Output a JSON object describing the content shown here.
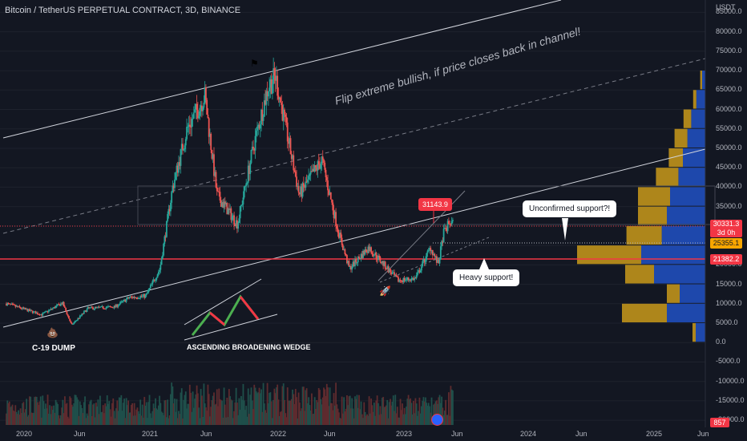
{
  "header": {
    "title": "Bitcoin / TetherUS PERPETUAL CONTRACT, 3D, BINANCE"
  },
  "price_axis": {
    "unit": "USDT",
    "ticks": [
      "85000.0",
      "80000.0",
      "75000.0",
      "70000.0",
      "65000.0",
      "60000.0",
      "55000.0",
      "50000.0",
      "45000.0",
      "40000.0",
      "35000.0",
      "20000.0",
      "15000.0",
      "10000.0",
      "5000.0",
      "0.0",
      "-5000.0",
      "-10000.0",
      "-15000.0",
      "-20000.0"
    ]
  },
  "time_axis": {
    "ticks": [
      "2020",
      "Jun",
      "2021",
      "Jun",
      "2022",
      "Jun",
      "2023",
      "Jun",
      "2024",
      "Jun",
      "2025",
      "Jun"
    ]
  },
  "price_tags": {
    "current": "30331.3",
    "countdown": "3d 0h",
    "level_orange": "25355.1",
    "level_red": "21382.2",
    "volume": "857"
  },
  "annotations": {
    "callout_high": "31143.9",
    "flip_text": "Flip extreme bullish, if price closes back in channel!",
    "unconfirmed": "Unconfirmed support?!",
    "heavy": "Heavy support!",
    "covid": "C-19 DUMP",
    "wedge": "ASCENDING BROADENING WEDGE"
  },
  "colors": {
    "bg": "#131722",
    "up": "#26a69a",
    "down": "#ef5350",
    "red_line": "#f23645",
    "orange": "#f7a600",
    "vp_up": "#2151c4",
    "vp_down": "#d6a21a"
  },
  "chart_data": {
    "type": "candlestick",
    "symbol": "BTCUSDT.P",
    "interval": "3D",
    "exchange": "BINANCE",
    "x_range": [
      "2019-09",
      "2025-06"
    ],
    "y_range": [
      -21000,
      89000
    ],
    "price_path": [
      [
        "2019-09-01",
        10000
      ],
      [
        "2019-12-15",
        7200
      ],
      [
        "2020-02-15",
        10200
      ],
      [
        "2020-03-13",
        4500
      ],
      [
        "2020-05-01",
        8800
      ],
      [
        "2020-07-20",
        9200
      ],
      [
        "2020-09-01",
        11600
      ],
      [
        "2020-10-20",
        12000
      ],
      [
        "2020-12-01",
        19000
      ],
      [
        "2021-01-08",
        40000
      ],
      [
        "2021-02-20",
        55000
      ],
      [
        "2021-04-14",
        63500
      ],
      [
        "2021-05-20",
        38000
      ],
      [
        "2021-07-20",
        30500
      ],
      [
        "2021-09-07",
        51000
      ],
      [
        "2021-10-20",
        66000
      ],
      [
        "2021-11-10",
        68500
      ],
      [
        "2022-01-20",
        38000
      ],
      [
        "2022-03-28",
        47000
      ],
      [
        "2022-05-15",
        29000
      ],
      [
        "2022-06-18",
        19000
      ],
      [
        "2022-08-14",
        24500
      ],
      [
        "2022-11-10",
        16000
      ],
      [
        "2023-01-01",
        16500
      ],
      [
        "2023-02-15",
        24500
      ],
      [
        "2023-03-10",
        20000
      ],
      [
        "2023-03-25",
        28000
      ],
      [
        "2023-04-14",
        31143.9
      ],
      [
        "2023-04-24",
        30331.3
      ]
    ],
    "levels": {
      "resistance_high": 31143.9,
      "current": 30331.3,
      "support_mid": 25355.1,
      "support_red": 21382.2
    },
    "volume_profile": [
      {
        "price": 67500,
        "up": 0.05,
        "down": 0.03
      },
      {
        "price": 62500,
        "up": 0.14,
        "down": 0.05
      },
      {
        "price": 57500,
        "up": 0.22,
        "down": 0.12
      },
      {
        "price": 52500,
        "up": 0.28,
        "down": 0.2
      },
      {
        "price": 47500,
        "up": 0.35,
        "down": 0.22
      },
      {
        "price": 42500,
        "up": 0.42,
        "down": 0.35
      },
      {
        "price": 37500,
        "up": 0.55,
        "down": 0.5
      },
      {
        "price": 32500,
        "up": 0.6,
        "down": 0.45
      },
      {
        "price": 27500,
        "up": 0.68,
        "down": 0.55
      },
      {
        "price": 22500,
        "up": 1.0,
        "down": 1.0
      },
      {
        "price": 17500,
        "up": 0.8,
        "down": 0.45
      },
      {
        "price": 12500,
        "up": 0.4,
        "down": 0.2
      },
      {
        "price": 7500,
        "up": 0.6,
        "down": 0.7
      },
      {
        "price": 2500,
        "up": 0.15,
        "down": 0.05
      }
    ]
  }
}
